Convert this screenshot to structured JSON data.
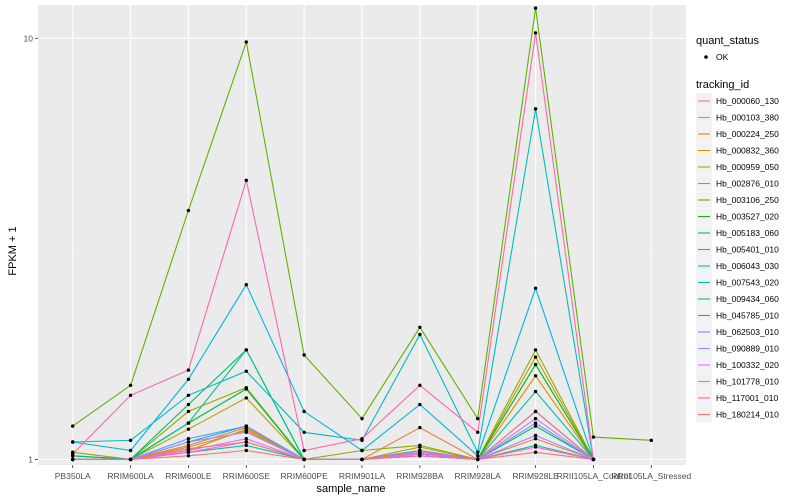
{
  "chart_data": {
    "type": "line",
    "xlabel": "sample_name",
    "ylabel": "FPKM + 1",
    "y_scale": "log10",
    "ylim": [
      0.97,
      12.0
    ],
    "y_ticks": [
      1,
      10
    ],
    "grid": true,
    "legend_position": "right",
    "background": "#ebebeb",
    "categories": [
      "PB350LA",
      "RRIM600LA",
      "RRIM600LE",
      "RRIM600SE",
      "RRIM600PE",
      "RRIM901LA",
      "RRIM928BA",
      "RRIM928LA",
      "RRIM928LE",
      "RRII105LA_Control",
      "RRII105LA_Stressed"
    ],
    "shape_legend": {
      "title": "quant_status",
      "entries": [
        "OK"
      ]
    },
    "color_legend_title": "tracking_id",
    "series": [
      {
        "name": "Hb_000060_130",
        "color": "#F8766D",
        "values": [
          1.0,
          1.0,
          1.02,
          1.05,
          1.0,
          1.0,
          1.02,
          1.0,
          1.04,
          1.0,
          null
        ]
      },
      {
        "name": "Hb_000103_380",
        "color": "#EE8043",
        "values": [
          1.0,
          1.0,
          1.07,
          1.17,
          1.0,
          1.0,
          1.19,
          1.0,
          1.12,
          1.0,
          null
        ]
      },
      {
        "name": "Hb_000224_250",
        "color": "#E18A00",
        "values": [
          1.0,
          1.0,
          1.08,
          1.19,
          1.0,
          1.0,
          1.05,
          1.0,
          1.58,
          1.0,
          null
        ]
      },
      {
        "name": "Hb_000832_360",
        "color": "#CD9600",
        "values": [
          1.0,
          1.0,
          1.05,
          1.18,
          1.0,
          1.0,
          1.03,
          1.0,
          1.68,
          1.0,
          null
        ]
      },
      {
        "name": "Hb_000959_050",
        "color": "#B3A000",
        "values": [
          1.0,
          1.0,
          1.18,
          1.4,
          1.0,
          1.0,
          1.07,
          1.0,
          1.75,
          1.0,
          null
        ]
      },
      {
        "name": "Hb_002876_010",
        "color": "#93AA00",
        "values": [
          1.04,
          1.0,
          1.3,
          1.48,
          1.0,
          1.05,
          1.08,
          1.0,
          1.82,
          1.0,
          null
        ]
      },
      {
        "name": "Hb_003106_250",
        "color": "#5EB300",
        "values": [
          1.2,
          1.5,
          3.9,
          9.8,
          1.77,
          1.25,
          2.06,
          1.25,
          11.8,
          1.13,
          1.11
        ]
      },
      {
        "name": "Hb_003527_020",
        "color": "#00BA38",
        "values": [
          1.02,
          1.0,
          1.22,
          1.47,
          1.0,
          1.0,
          1.05,
          1.0,
          1.68,
          1.0,
          null
        ]
      },
      {
        "name": "Hb_005183_060",
        "color": "#00BE6C",
        "values": [
          1.02,
          1.0,
          1.35,
          1.82,
          1.0,
          1.0,
          1.04,
          1.0,
          1.2,
          1.0,
          null
        ]
      },
      {
        "name": "Hb_005401_010",
        "color": "#00C08B",
        "values": [
          1.0,
          1.0,
          1.22,
          1.82,
          1.0,
          1.0,
          1.03,
          1.0,
          1.08,
          1.0,
          null
        ]
      },
      {
        "name": "Hb_006043_030",
        "color": "#00C0A7",
        "values": [
          1.0,
          1.0,
          1.04,
          1.08,
          1.0,
          1.0,
          1.02,
          1.0,
          1.45,
          1.0,
          null
        ]
      },
      {
        "name": "Hb_007543_020",
        "color": "#00BCC1",
        "values": [
          1.1,
          1.11,
          1.42,
          1.62,
          1.16,
          1.11,
          1.98,
          1.04,
          6.8,
          1.0,
          null
        ]
      },
      {
        "name": "Hb_009434_060",
        "color": "#00B6DB",
        "values": [
          1.1,
          1.05,
          1.55,
          2.6,
          1.3,
          1.05,
          1.35,
          1.02,
          2.55,
          1.0,
          null
        ]
      },
      {
        "name": "Hb_045785_010",
        "color": "#00ABFD",
        "values": [
          1.0,
          1.0,
          1.1,
          1.2,
          1.0,
          1.0,
          1.04,
          1.0,
          1.3,
          1.0,
          null
        ]
      },
      {
        "name": "Hb_062503_010",
        "color": "#619CFF",
        "values": [
          1.0,
          1.0,
          1.12,
          1.2,
          1.0,
          1.0,
          1.05,
          1.0,
          1.22,
          1.0,
          null
        ]
      },
      {
        "name": "Hb_090889_010",
        "color": "#A58AFF",
        "values": [
          1.0,
          1.0,
          1.1,
          1.16,
          1.0,
          1.0,
          1.04,
          1.0,
          1.14,
          1.0,
          null
        ]
      },
      {
        "name": "Hb_100332_020",
        "color": "#DF70F8",
        "values": [
          1.0,
          1.0,
          1.05,
          1.12,
          1.0,
          1.0,
          1.03,
          1.0,
          1.25,
          1.0,
          null
        ]
      },
      {
        "name": "Hb_101778_010",
        "color": "#FB61D7",
        "values": [
          1.0,
          1.0,
          1.04,
          1.1,
          1.0,
          1.0,
          1.02,
          1.0,
          1.07,
          1.0,
          null
        ]
      },
      {
        "name": "Hb_117001_010",
        "color": "#FF66A8",
        "values": [
          1.03,
          1.42,
          1.63,
          4.6,
          1.05,
          1.12,
          1.5,
          1.16,
          10.3,
          1.0,
          null
        ]
      },
      {
        "name": "Hb_180214_010",
        "color": "#F8766D",
        "values": [
          1.0,
          1.0,
          1.06,
          1.1,
          1.0,
          1.0,
          1.04,
          1.0,
          1.3,
          1.0,
          null
        ]
      }
    ]
  }
}
